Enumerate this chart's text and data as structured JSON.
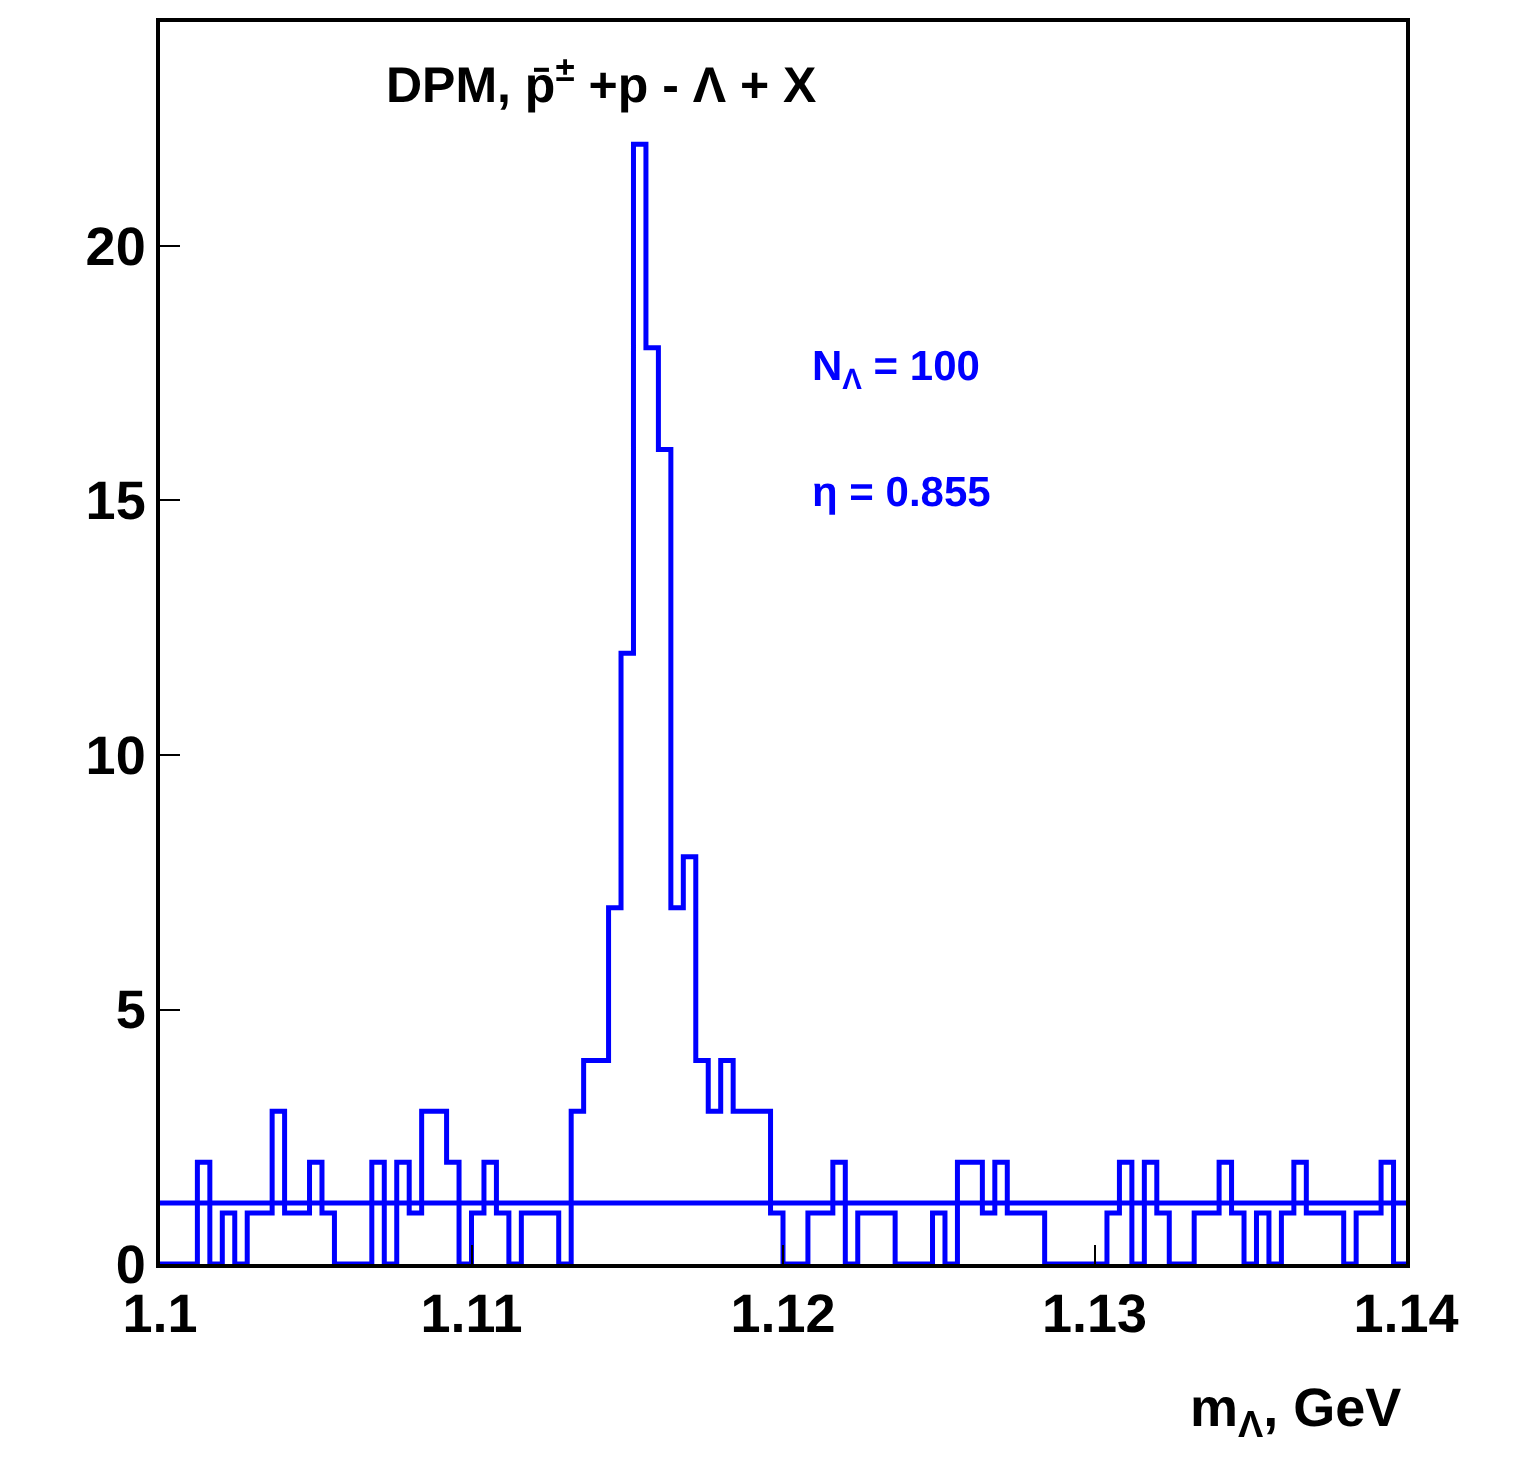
{
  "chart_data": {
    "type": "histogram",
    "title": "DPM, p̄$^{±}$ +p - Λ + X",
    "xlabel": "m$_{Λ}$, GeV",
    "annotations": [
      "N$_{Λ}$ = 100",
      "η = 0.855"
    ],
    "bins": [
      1.1,
      1.1004,
      1.1008,
      1.1012,
      1.1016,
      1.102,
      1.1024,
      1.1028,
      1.1032,
      1.1036,
      1.104,
      1.1044,
      1.1048,
      1.1052,
      1.1056,
      1.106,
      1.1064,
      1.1068,
      1.1072,
      1.1076,
      1.108,
      1.1084,
      1.1088,
      1.1092,
      1.1096,
      1.11,
      1.1104,
      1.1108,
      1.1112,
      1.1116,
      1.112,
      1.1124,
      1.1128,
      1.1132,
      1.1136,
      1.114,
      1.1144,
      1.1148,
      1.1152,
      1.1156,
      1.116,
      1.1164,
      1.1168,
      1.1172,
      1.1176,
      1.118,
      1.1184,
      1.1188,
      1.1192,
      1.1196,
      1.12,
      1.1204,
      1.1208,
      1.1212,
      1.1216,
      1.122,
      1.1224,
      1.1228,
      1.1232,
      1.1236,
      1.124,
      1.1244,
      1.1248,
      1.1252,
      1.1256,
      1.126,
      1.1264,
      1.1268,
      1.1272,
      1.1276,
      1.128,
      1.1284,
      1.1288,
      1.1292,
      1.1296,
      1.13,
      1.1304,
      1.1308,
      1.1312,
      1.1316,
      1.132,
      1.1324,
      1.1328,
      1.1332,
      1.1336,
      1.134,
      1.1344,
      1.1348,
      1.1352,
      1.1356,
      1.136,
      1.1364,
      1.1368,
      1.1372,
      1.1376,
      1.138,
      1.1384,
      1.1388,
      1.1392,
      1.1396,
      1.14
    ],
    "series": [
      {
        "color": "#0000ff",
        "values": [
          0,
          0,
          0,
          2,
          0,
          1,
          0,
          1,
          1,
          3,
          1,
          1,
          2,
          1,
          0,
          0,
          0,
          2,
          0,
          2,
          1,
          3,
          3,
          2,
          0,
          1,
          2,
          1,
          0,
          1,
          1,
          1,
          0,
          3,
          4,
          4,
          7,
          12,
          22,
          18,
          16,
          7,
          8,
          4,
          3,
          4,
          3,
          3,
          3,
          1,
          0,
          0,
          1,
          1,
          2,
          0,
          1,
          1,
          1,
          0,
          0,
          0,
          1,
          0,
          2,
          2,
          1,
          2,
          1,
          1,
          1,
          0,
          0,
          0,
          0,
          0,
          1,
          2,
          0,
          2,
          1,
          0,
          0,
          1,
          1,
          2,
          1,
          0,
          1,
          0,
          1,
          2,
          1,
          1,
          1,
          0,
          1,
          1,
          2,
          0
        ]
      },
      {
        "type": "line",
        "color": "#0000ff",
        "x": [
          1.1,
          1.14
        ],
        "values": [
          1.2,
          1.2
        ]
      }
    ],
    "xlim": [
      1.1,
      1.14
    ],
    "xticks": [
      1.1,
      1.11,
      1.12,
      1.13,
      1.14
    ],
    "ylim": [
      0,
      24.4
    ],
    "yticks": [
      0,
      5,
      10,
      15,
      20
    ]
  }
}
